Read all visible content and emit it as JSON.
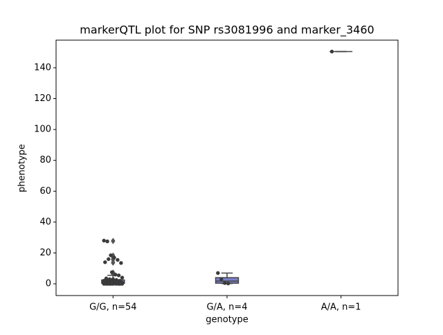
{
  "chart_data": {
    "type": "box",
    "title": "markerQTL plot for SNP rs3081996 and marker_3460",
    "x_label": "genotype",
    "y_label": "phenotype",
    "categories": [
      "G/G, n=54",
      "G/A, n=4",
      "A/A, n=1"
    ],
    "ylim": [
      -7.6,
      157.9
    ],
    "yticks": [
      0,
      20,
      40,
      60,
      80,
      100,
      120,
      140
    ],
    "color": "#7b7fc9",
    "point_color": "#3a3a3a",
    "boxes": [
      {
        "min": 0,
        "q1": 0.3,
        "median": 1,
        "q3": 2.5,
        "max": 5.5,
        "outliers": [
          28,
          27.5,
          18.5,
          17,
          16,
          15.5,
          14,
          13.5,
          7.5,
          6
        ]
      },
      {
        "min": 0.2,
        "q1": 0.4,
        "median": 1.75,
        "q3": 4,
        "max": 7,
        "outliers": []
      },
      {
        "min": 150.5,
        "q1": 150.5,
        "median": 150.5,
        "q3": 150.5,
        "max": 150.5,
        "outliers": []
      }
    ],
    "points": [
      [
        28,
        27.5,
        18.5,
        17,
        15.5,
        13.5,
        14,
        16,
        7.5,
        6,
        5.5,
        4,
        3.5,
        3,
        3,
        2.5,
        2,
        2,
        2,
        1.5,
        1.5,
        1.5,
        1,
        1,
        1,
        1,
        1,
        1,
        0.8,
        0.8,
        0.5,
        0.5,
        0.5,
        0.5,
        0.5,
        0.3,
        0.3,
        0.3,
        0.2,
        0.2,
        0.2,
        0.1,
        0.1,
        0.1,
        0,
        0,
        0,
        0,
        0,
        0,
        0,
        0,
        0,
        0
      ],
      [
        7,
        3,
        0.5,
        0.2
      ],
      [
        150.5
      ]
    ]
  }
}
